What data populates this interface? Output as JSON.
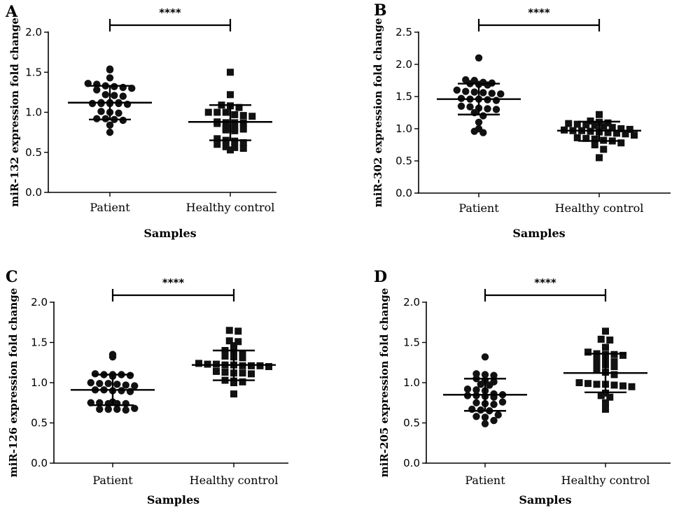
{
  "chart_data": [
    {
      "type": "scatter",
      "panel": "A",
      "ylabel": "miR-132 expression fold change",
      "xlabel": "Samples",
      "categories": [
        "Patient",
        "Healthy control"
      ],
      "ylim": [
        0,
        2.0
      ],
      "yticks": [
        "0.0",
        "0.5",
        "1.0",
        "1.5",
        "2.0"
      ],
      "significance": "****",
      "groups": [
        {
          "category": "Patient",
          "marker": "circle",
          "mean": 1.12,
          "sd_low": 0.91,
          "sd_high": 1.33,
          "values": [
            1.54,
            1.53,
            1.43,
            1.36,
            1.35,
            1.33,
            1.32,
            1.31,
            1.3,
            1.28,
            1.22,
            1.21,
            1.2,
            1.12,
            1.12,
            1.12,
            1.11,
            1.11,
            1.11,
            1.11,
            1.1,
            1.01,
            1.0,
            0.99,
            0.92,
            0.92,
            0.91,
            0.9,
            0.84,
            0.75
          ]
        },
        {
          "category": "Healthy control",
          "marker": "square",
          "mean": 0.88,
          "sd_low": 0.65,
          "sd_high": 1.09,
          "values": [
            1.5,
            1.22,
            1.09,
            1.08,
            1.06,
            1.0,
            1.0,
            1.0,
            0.97,
            0.96,
            0.95,
            0.88,
            0.87,
            0.87,
            0.87,
            0.86,
            0.8,
            0.8,
            0.79,
            0.78,
            0.77,
            0.67,
            0.65,
            0.64,
            0.62,
            0.6,
            0.57,
            0.56,
            0.55,
            0.53
          ]
        }
      ]
    },
    {
      "type": "scatter",
      "panel": "B",
      "ylabel": "miR-302 expression fold change",
      "xlabel": "Samples",
      "categories": [
        "Patient",
        "Healthy control"
      ],
      "ylim": [
        0,
        2.5
      ],
      "yticks": [
        "0.0",
        "0.5",
        "1.0",
        "1.5",
        "2.0",
        "2.5"
      ],
      "significance": "****",
      "groups": [
        {
          "category": "Patient",
          "marker": "circle",
          "mean": 1.46,
          "sd_low": 1.22,
          "sd_high": 1.7,
          "values": [
            2.1,
            1.76,
            1.75,
            1.72,
            1.71,
            1.7,
            1.69,
            1.68,
            1.6,
            1.58,
            1.57,
            1.56,
            1.55,
            1.54,
            1.47,
            1.46,
            1.46,
            1.45,
            1.44,
            1.35,
            1.34,
            1.32,
            1.31,
            1.3,
            1.25,
            1.2,
            1.1,
            1.0,
            0.96,
            0.94
          ]
        },
        {
          "category": "Healthy control",
          "marker": "square",
          "mean": 0.97,
          "sd_low": 0.81,
          "sd_high": 1.11,
          "values": [
            1.22,
            1.12,
            1.1,
            1.09,
            1.08,
            1.07,
            1.06,
            1.05,
            1.04,
            1.02,
            1.0,
            0.99,
            0.98,
            0.97,
            0.97,
            0.96,
            0.95,
            0.94,
            0.93,
            0.92,
            0.9,
            0.86,
            0.85,
            0.84,
            0.82,
            0.81,
            0.78,
            0.75,
            0.68,
            0.55
          ]
        }
      ]
    },
    {
      "type": "scatter",
      "panel": "C",
      "ylabel": "miR-126 expression fold change",
      "xlabel": "Samples",
      "categories": [
        "Patient",
        "Healthy control"
      ],
      "ylim": [
        0,
        2.0
      ],
      "yticks": [
        "0.0",
        "0.5",
        "1.0",
        "1.5",
        "2.0"
      ],
      "significance": "****",
      "groups": [
        {
          "category": "Patient",
          "marker": "circle",
          "mean": 0.91,
          "sd_low": 0.72,
          "sd_high": 1.1,
          "values": [
            1.35,
            1.32,
            1.11,
            1.1,
            1.1,
            1.1,
            1.09,
            1.08,
            1.0,
            0.99,
            0.99,
            0.98,
            0.97,
            0.96,
            0.91,
            0.91,
            0.9,
            0.9,
            0.89,
            0.76,
            0.75,
            0.75,
            0.74,
            0.74,
            0.74,
            0.68,
            0.67,
            0.67,
            0.67,
            0.66
          ]
        },
        {
          "category": "Healthy control",
          "marker": "square",
          "mean": 1.22,
          "sd_low": 1.03,
          "sd_high": 1.4,
          "values": [
            1.65,
            1.64,
            1.52,
            1.51,
            1.46,
            1.4,
            1.39,
            1.36,
            1.33,
            1.32,
            1.31,
            1.24,
            1.23,
            1.23,
            1.22,
            1.22,
            1.21,
            1.21,
            1.21,
            1.2,
            1.14,
            1.13,
            1.12,
            1.12,
            1.11,
            1.03,
            1.02,
            1.01,
            1.0,
            0.86
          ]
        }
      ]
    },
    {
      "type": "scatter",
      "panel": "D",
      "ylabel": "miR-205 expression fold change",
      "xlabel": "Samples",
      "categories": [
        "Patient",
        "Healthy control"
      ],
      "ylim": [
        0,
        2.0
      ],
      "yticks": [
        "0.0",
        "0.5",
        "1.0",
        "1.5",
        "2.0"
      ],
      "significance": "****",
      "groups": [
        {
          "category": "Patient",
          "marker": "circle",
          "mean": 0.85,
          "sd_low": 0.65,
          "sd_high": 1.05,
          "values": [
            1.32,
            1.11,
            1.1,
            1.09,
            1.05,
            1.03,
            1.01,
            0.98,
            0.97,
            0.92,
            0.91,
            0.9,
            0.86,
            0.85,
            0.84,
            0.84,
            0.83,
            0.82,
            0.76,
            0.75,
            0.74,
            0.73,
            0.67,
            0.66,
            0.65,
            0.6,
            0.58,
            0.57,
            0.53,
            0.49
          ]
        },
        {
          "category": "Healthy control",
          "marker": "square",
          "mean": 1.12,
          "sd_low": 0.88,
          "sd_high": 1.36,
          "values": [
            1.64,
            1.54,
            1.53,
            1.44,
            1.38,
            1.36,
            1.35,
            1.35,
            1.34,
            1.32,
            1.3,
            1.26,
            1.24,
            1.22,
            1.2,
            1.17,
            1.13,
            1.1,
            1.0,
            0.99,
            0.98,
            0.98,
            0.97,
            0.96,
            0.95,
            0.87,
            0.84,
            0.82,
            0.75,
            0.67
          ]
        }
      ]
    }
  ]
}
